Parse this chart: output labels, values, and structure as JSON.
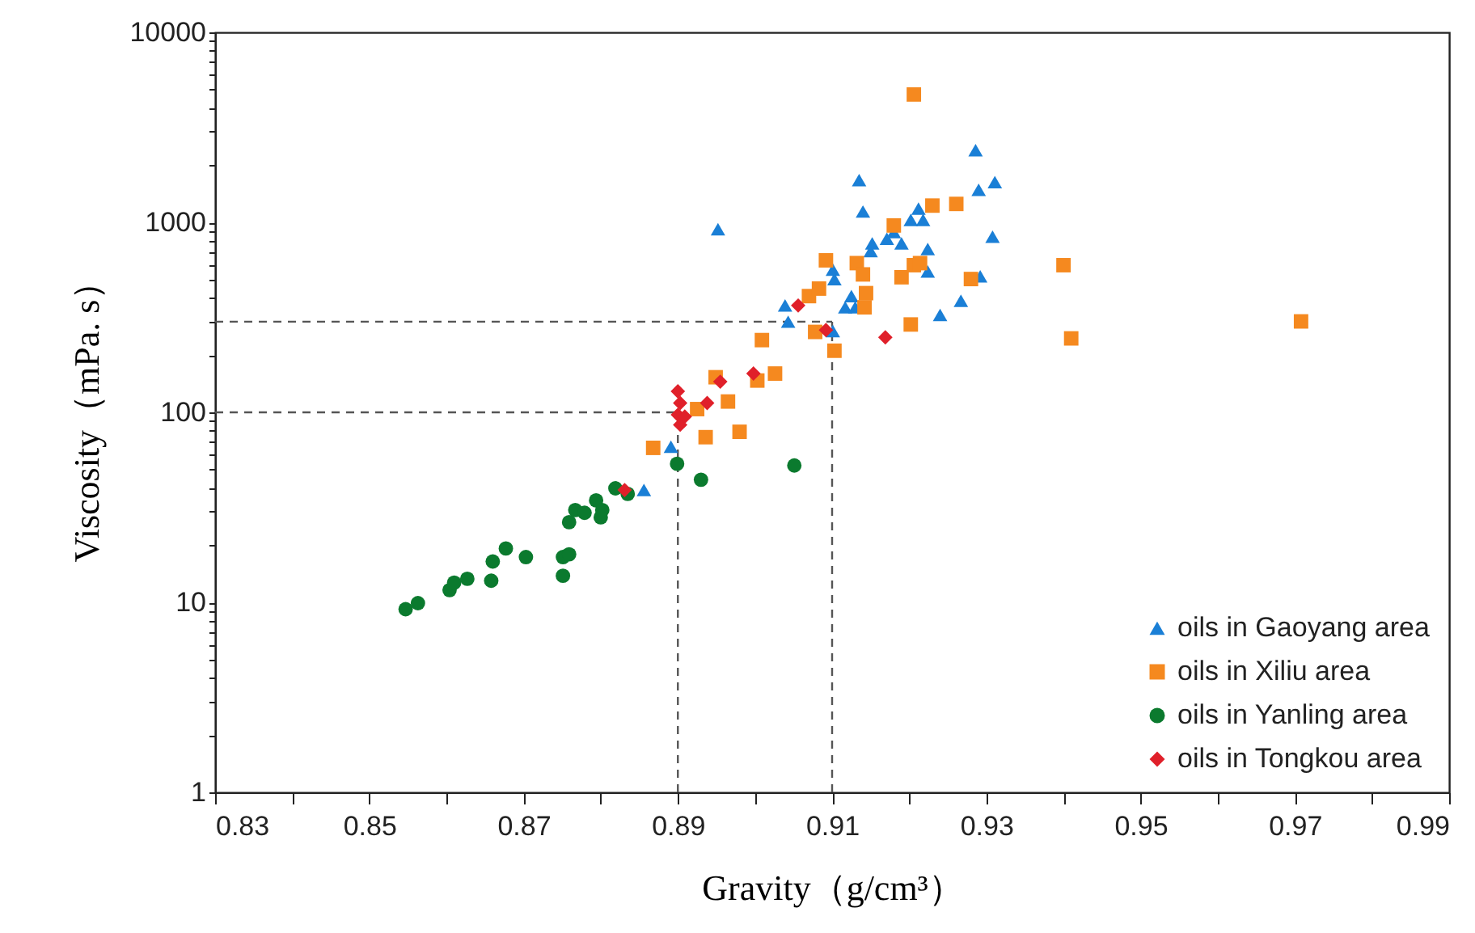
{
  "chart_data": {
    "type": "scatter",
    "xlabel": "Gravity（g/cm³）",
    "ylabel": "Viscosity（mPa. s）",
    "log": "y",
    "grid": false,
    "legend": "bottom right",
    "xlim": [
      0.83,
      0.99
    ],
    "ylim": [
      1,
      10000
    ],
    "xticks": [
      0.83,
      {
        "value": 0.84,
        "label": null
      },
      0.85,
      {
        "value": 0.86,
        "label": null
      },
      0.87,
      {
        "value": 0.88,
        "label": null
      },
      0.89,
      {
        "value": 0.9,
        "label": null
      },
      0.91,
      {
        "value": 0.92,
        "label": null
      },
      0.93,
      {
        "value": 0.94,
        "label": null
      },
      0.95,
      {
        "value": 0.96,
        "label": null
      },
      0.97,
      {
        "value": 0.98,
        "label": null
      },
      0.99
    ],
    "yticks": [
      1,
      {
        "value": 2,
        "label": null
      },
      {
        "value": 3,
        "label": null
      },
      {
        "value": 4,
        "label": null
      },
      {
        "value": 5,
        "label": null
      },
      {
        "value": 6,
        "label": null
      },
      {
        "value": 7,
        "label": null
      },
      {
        "value": 8,
        "label": null
      },
      {
        "value": 9,
        "label": null
      },
      10,
      {
        "value": 20,
        "label": null
      },
      {
        "value": 30,
        "label": null
      },
      {
        "value": 40,
        "label": null
      },
      {
        "value": 50,
        "label": null
      },
      {
        "value": 60,
        "label": null
      },
      {
        "value": 70,
        "label": null
      },
      {
        "value": 80,
        "label": null
      },
      {
        "value": 90,
        "label": null
      },
      100,
      {
        "value": 200,
        "label": null
      },
      {
        "value": 300,
        "label": null
      },
      {
        "value": 400,
        "label": null
      },
      {
        "value": 500,
        "label": null
      },
      {
        "value": 600,
        "label": null
      },
      {
        "value": 700,
        "label": null
      },
      {
        "value": 800,
        "label": null
      },
      {
        "value": 900,
        "label": null
      },
      1000,
      {
        "value": 2000,
        "label": null
      },
      {
        "value": 3000,
        "label": null
      },
      {
        "value": 4000,
        "label": null
      },
      {
        "value": 5000,
        "label": null
      },
      {
        "value": 6000,
        "label": null
      },
      {
        "value": 7000,
        "label": null
      },
      {
        "value": 8000,
        "label": null
      },
      {
        "value": 9000,
        "label": null
      },
      10000
    ],
    "ref_lines": [
      {
        "axis": "y",
        "value": 100,
        "line_style": "dashed",
        "color": "#555555"
      },
      {
        "axis": "y",
        "value": 300,
        "line_style": "dashed",
        "color": "#555555"
      },
      {
        "axis": "x",
        "value": 0.89,
        "line_style": "dashed",
        "color": "#555555"
      },
      {
        "axis": "x",
        "value": 0.91,
        "line_style": "dashed",
        "color": "#555555"
      }
    ],
    "series": [
      {
        "name": "oils in Gaoyang area",
        "color": "#1a7fd6",
        "marker": "triangle",
        "x": [
          0.8952,
          0.8891,
          0.8856,
          0.9039,
          0.9043,
          0.9101,
          0.9103,
          0.9101,
          0.9117,
          0.9125,
          0.913,
          0.9135,
          0.914,
          0.915,
          0.9152,
          0.9171,
          0.918,
          0.919,
          0.9202,
          0.9212,
          0.9218,
          0.9224,
          0.9224,
          0.924,
          0.9267,
          0.9286,
          0.929,
          0.9292,
          0.9311,
          0.9308
        ],
        "values": [
          920,
          66,
          39,
          365,
          300,
          564,
          503,
          268,
          357,
          409,
          357,
          1670,
          1140,
          707,
          775,
          820,
          890,
          775,
          1030,
          1180,
          1030,
          724,
          551,
          326,
          387,
          2400,
          1485,
          520,
          1630,
          840
        ]
      },
      {
        "name": "oils in Xiliu area",
        "color": "#f5891f",
        "marker": "square",
        "x": [
          0.8868,
          0.8936,
          0.8965,
          0.898,
          0.8949,
          0.8925,
          0.9003,
          0.9009,
          0.9026,
          0.907,
          0.9083,
          0.9092,
          0.9078,
          0.9103,
          0.9132,
          0.914,
          0.9144,
          0.9142,
          0.918,
          0.919,
          0.9202,
          0.9206,
          0.9214,
          0.9206,
          0.923,
          0.9261,
          0.928,
          0.94,
          0.941,
          0.9708
        ],
        "values": [
          65,
          74,
          114,
          79,
          153,
          104,
          147,
          240,
          160,
          409,
          448,
          631,
          265,
          211,
          610,
          532,
          424,
          357,
          963,
          514,
          290,
          595,
          610,
          4710,
          1225,
          1250,
          503,
          595,
          245,
          301
        ]
      },
      {
        "name": "oils in Yanling area",
        "color": "#0b7a2e",
        "marker": "circle",
        "x": [
          0.8547,
          0.8563,
          0.8604,
          0.861,
          0.8627,
          0.8658,
          0.866,
          0.8677,
          0.8703,
          0.8751,
          0.8751,
          0.8759,
          0.8759,
          0.8767,
          0.8779,
          0.8794,
          0.88,
          0.8802,
          0.8819,
          0.8835,
          0.8899,
          0.893,
          0.9051
        ],
        "values": [
          9.2,
          9.9,
          11.6,
          12.7,
          13.3,
          13.0,
          16.4,
          19.2,
          17.3,
          13.8,
          17.3,
          17.9,
          26.4,
          30.6,
          29.6,
          34.4,
          28.0,
          30.6,
          39.8,
          37.2,
          53.6,
          44.2,
          52.5
        ]
      },
      {
        "name": "oils in Tongkou area",
        "color": "#e0202a",
        "marker": "diamond",
        "x": [
          0.8831,
          0.89,
          0.8903,
          0.89,
          0.8903,
          0.8909,
          0.8938,
          0.8955,
          0.8998,
          0.9056,
          0.9092,
          0.9169
        ],
        "values": [
          39,
          129,
          112,
          97,
          86,
          95,
          112,
          145,
          160,
          365,
          271,
          248
        ]
      }
    ]
  }
}
